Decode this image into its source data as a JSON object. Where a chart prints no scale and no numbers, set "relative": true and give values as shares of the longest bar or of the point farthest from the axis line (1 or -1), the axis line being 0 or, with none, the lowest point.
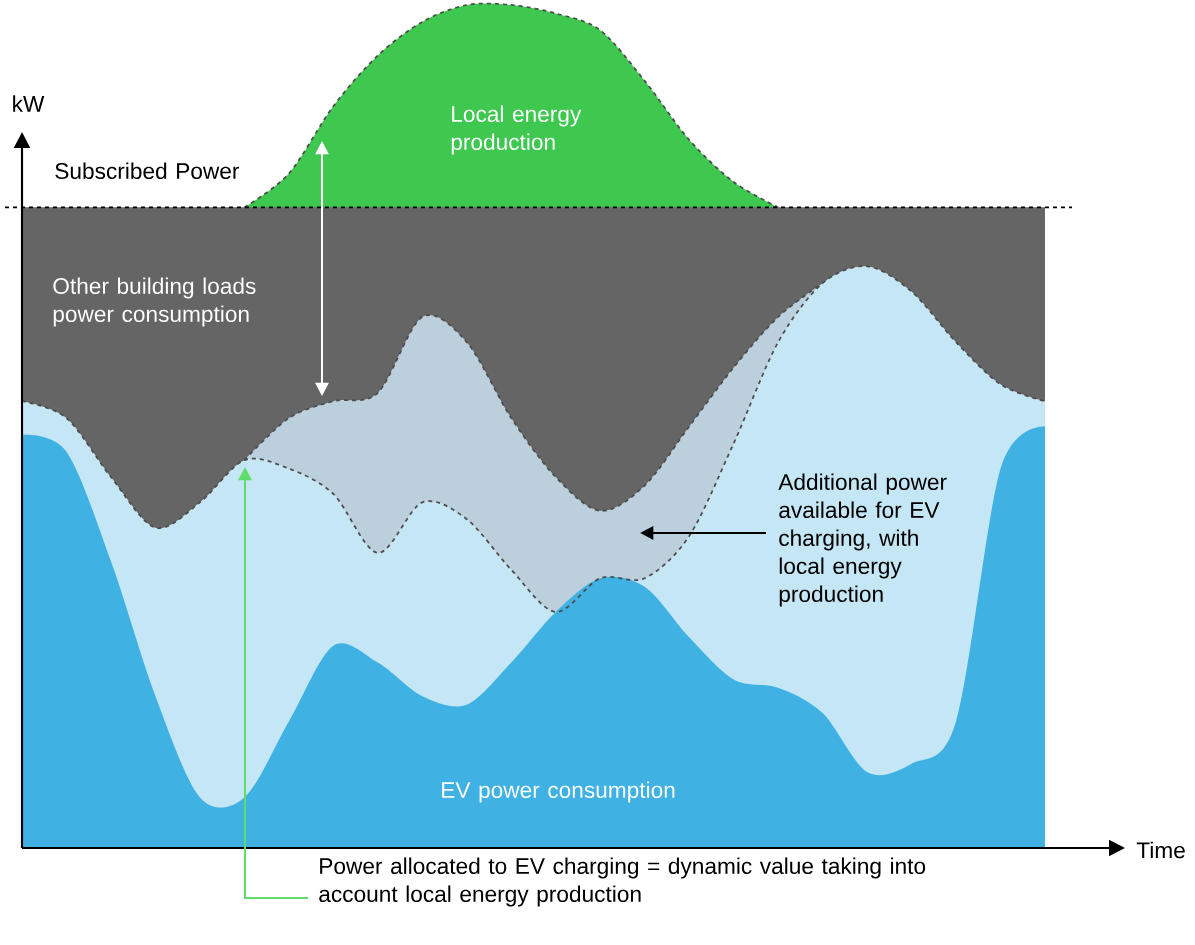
{
  "chart_data": {
    "type": "area",
    "relative": true,
    "xlabel": "Time",
    "ylabel": "kW",
    "categories": [
      null,
      null,
      null,
      null,
      null,
      null,
      null,
      null,
      null,
      null,
      null,
      null,
      null,
      null,
      null,
      null,
      null,
      null,
      null,
      null,
      null,
      null,
      null,
      null
    ],
    "series": [
      {
        "name": "Local energy production",
        "color": "#3ec84f",
        "line_style": "dashed",
        "values": [
          null,
          null,
          null,
          null,
          null,
          0.76,
          0.8,
          0.88,
          0.94,
          0.98,
          1.0,
          1.0,
          0.99,
          0.97,
          0.91,
          0.84,
          0.79,
          0.76,
          null,
          null,
          null,
          null,
          null,
          null
        ]
      },
      {
        "name": "Other building loads power consumption",
        "color": "#666566",
        "values": [
          0.76,
          0.76,
          0.76,
          0.76,
          0.76,
          0.76,
          0.76,
          0.76,
          0.76,
          0.76,
          0.76,
          0.76,
          0.76,
          0.76,
          0.76,
          0.76,
          0.76,
          0.76,
          0.76,
          0.76,
          0.76,
          0.76,
          0.76,
          0.76
        ]
      },
      {
        "color": "#bccfdc",
        "line_style": "dashed",
        "values": [
          null,
          null,
          null,
          null,
          null,
          0.46,
          0.51,
          0.53,
          0.54,
          0.63,
          0.6,
          0.51,
          0.44,
          0.4,
          0.43,
          0.5,
          0.57,
          0.63,
          0.67,
          null,
          null,
          null,
          null,
          null
        ]
      },
      {
        "color": "#c5e6f4",
        "line_style": "dashed",
        "values": [
          0.53,
          0.51,
          0.44,
          0.38,
          0.41,
          0.46,
          0.45,
          0.42,
          0.35,
          0.41,
          0.39,
          0.33,
          0.28,
          0.32,
          0.32,
          0.37,
          0.48,
          0.6,
          0.67,
          0.69,
          0.66,
          0.6,
          0.55,
          0.53
        ]
      },
      {
        "name": "EV power consumption",
        "color": "#3fb1e3",
        "values": [
          0.49,
          0.47,
          0.34,
          0.18,
          0.06,
          0.06,
          0.15,
          0.24,
          0.22,
          0.18,
          0.17,
          0.22,
          0.28,
          0.32,
          0.31,
          0.25,
          0.2,
          0.19,
          0.16,
          0.09,
          0.1,
          0.15,
          0.45,
          0.5
        ]
      }
    ],
    "annotations": [
      "Additional power available for EV charging, with local energy production",
      "Power allocated to EV charging = dynamic value taking into account local energy production"
    ],
    "ref_lines": [
      {
        "axis": "y",
        "value": 0.76,
        "label": "Subscribed Power",
        "color": "#000000",
        "line_style": "dashed"
      }
    ]
  }
}
